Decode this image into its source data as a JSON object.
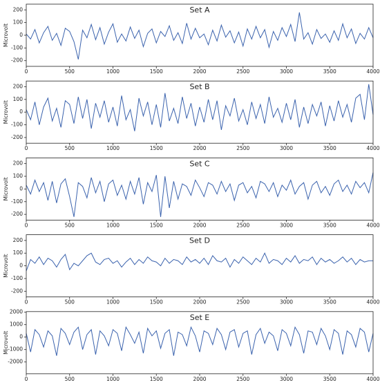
{
  "chart_data": [
    {
      "type": "line",
      "title": "Set A",
      "y_label": "Microvolt",
      "color": "#3a62ad",
      "x": [
        0,
        50,
        100,
        150,
        200,
        250,
        300,
        350,
        400,
        450,
        500,
        550,
        600,
        650,
        700,
        750,
        800,
        850,
        900,
        950,
        1000,
        1050,
        1100,
        1150,
        1200,
        1250,
        1300,
        1350,
        1400,
        1450,
        1500,
        1550,
        1600,
        1650,
        1700,
        1750,
        1800,
        1850,
        1900,
        1950,
        2000,
        2050,
        2100,
        2150,
        2200,
        2250,
        2300,
        2350,
        2400,
        2450,
        2500,
        2550,
        2600,
        2650,
        2700,
        2750,
        2800,
        2850,
        2900,
        2950,
        3000,
        3050,
        3100,
        3150,
        3200,
        3250,
        3300,
        3350,
        3400,
        3450,
        3500,
        3550,
        3600,
        3650,
        3700,
        3750,
        3800,
        3850,
        3900,
        3950,
        4000
      ],
      "values": [
        10,
        -30,
        45,
        -60,
        20,
        70,
        -40,
        15,
        -80,
        55,
        30,
        -50,
        -190,
        40,
        -20,
        85,
        -35,
        60,
        -70,
        25,
        90,
        -55,
        10,
        -45,
        65,
        -25,
        40,
        -90,
        15,
        50,
        -60,
        30,
        -10,
        75,
        -40,
        20,
        -65,
        95,
        -30,
        55,
        -20,
        10,
        -75,
        40,
        -45,
        80,
        -15,
        35,
        -60,
        25,
        -85,
        50,
        -30,
        70,
        -20,
        45,
        -95,
        30,
        -40,
        60,
        -10,
        85,
        -50,
        180,
        -30,
        20,
        -70,
        45,
        -25,
        10,
        -55,
        35,
        -40,
        90,
        -20,
        50,
        -65,
        15,
        -30,
        60,
        -20
      ],
      "xlim": [
        0,
        4000
      ],
      "xticks": [
        0,
        500,
        1000,
        1500,
        2000,
        2500,
        3000,
        3500,
        4000
      ],
      "ylim": [
        -245,
        245
      ],
      "yticks": [
        -200,
        -100,
        0,
        100,
        200
      ]
    },
    {
      "type": "line",
      "title": "Set B",
      "y_label": "Microvolt",
      "color": "#3a62ad",
      "x": [
        0,
        50,
        100,
        150,
        200,
        250,
        300,
        350,
        400,
        450,
        500,
        550,
        600,
        650,
        700,
        750,
        800,
        850,
        900,
        950,
        1000,
        1050,
        1100,
        1150,
        1200,
        1250,
        1300,
        1350,
        1400,
        1450,
        1500,
        1550,
        1600,
        1650,
        1700,
        1750,
        1800,
        1850,
        1900,
        1950,
        2000,
        2050,
        2100,
        2150,
        2200,
        2250,
        2300,
        2350,
        2400,
        2450,
        2500,
        2550,
        2600,
        2650,
        2700,
        2750,
        2800,
        2850,
        2900,
        2950,
        3000,
        3050,
        3100,
        3150,
        3200,
        3250,
        3300,
        3350,
        3400,
        3450,
        3500,
        3550,
        3600,
        3650,
        3700,
        3750,
        3800,
        3850,
        3900,
        3950,
        4000
      ],
      "values": [
        20,
        -60,
        80,
        -100,
        40,
        110,
        -70,
        30,
        -120,
        90,
        60,
        -90,
        120,
        -50,
        100,
        -130,
        70,
        -40,
        90,
        -80,
        40,
        -110,
        130,
        -60,
        20,
        -150,
        110,
        -30,
        80,
        -100,
        60,
        -120,
        150,
        -70,
        30,
        -90,
        120,
        -50,
        70,
        -110,
        40,
        -80,
        100,
        -60,
        90,
        -140,
        50,
        -30,
        110,
        -70,
        20,
        -100,
        80,
        -50,
        60,
        -90,
        120,
        -40,
        30,
        -80,
        70,
        -60,
        100,
        -120,
        40,
        -90,
        60,
        -30,
        80,
        -110,
        50,
        -70,
        90,
        -40,
        60,
        -80,
        110,
        140,
        -60,
        220,
        -20
      ],
      "xlim": [
        0,
        4000
      ],
      "xticks": [
        0,
        500,
        1000,
        1500,
        2000,
        2500,
        3000,
        3500,
        4000
      ],
      "ylim": [
        -245,
        245
      ],
      "yticks": [
        -200,
        -100,
        0,
        100,
        200
      ]
    },
    {
      "type": "line",
      "title": "Set C",
      "y_label": "Microvolt",
      "color": "#3a62ad",
      "x": [
        0,
        50,
        100,
        150,
        200,
        250,
        300,
        350,
        400,
        450,
        500,
        550,
        600,
        650,
        700,
        750,
        800,
        850,
        900,
        950,
        1000,
        1050,
        1100,
        1150,
        1200,
        1250,
        1300,
        1350,
        1400,
        1450,
        1500,
        1550,
        1600,
        1650,
        1700,
        1750,
        1800,
        1850,
        1900,
        1950,
        2000,
        2050,
        2100,
        2150,
        2200,
        2250,
        2300,
        2350,
        2400,
        2450,
        2500,
        2550,
        2600,
        2650,
        2700,
        2750,
        2800,
        2850,
        2900,
        2950,
        3000,
        3050,
        3100,
        3150,
        3200,
        3250,
        3300,
        3350,
        3400,
        3450,
        3500,
        3550,
        3600,
        3650,
        3700,
        3750,
        3800,
        3850,
        3900,
        3950,
        4000
      ],
      "values": [
        30,
        -40,
        70,
        -20,
        50,
        -90,
        60,
        -110,
        40,
        80,
        -60,
        -220,
        50,
        20,
        -70,
        90,
        -30,
        60,
        -100,
        40,
        70,
        -50,
        30,
        -80,
        60,
        -40,
        90,
        -120,
        50,
        -20,
        110,
        -220,
        100,
        -150,
        60,
        -80,
        40,
        20,
        -50,
        70,
        10,
        -60,
        50,
        30,
        -40,
        60,
        -20,
        40,
        -90,
        30,
        50,
        -30,
        20,
        -70,
        60,
        40,
        -20,
        50,
        -60,
        30,
        -10,
        70,
        -40,
        20,
        50,
        -80,
        30,
        60,
        -30,
        20,
        -50,
        40,
        70,
        -20,
        30,
        -40,
        60,
        10,
        50,
        -30,
        130
      ],
      "xlim": [
        0,
        4000
      ],
      "xticks": [
        0,
        500,
        1000,
        1500,
        2000,
        2500,
        3000,
        3500,
        4000
      ],
      "ylim": [
        -245,
        245
      ],
      "yticks": [
        -200,
        -100,
        0,
        100,
        200
      ]
    },
    {
      "type": "line",
      "title": "Set D",
      "y_label": "Microvolt",
      "color": "#3a62ad",
      "x": [
        0,
        50,
        100,
        150,
        200,
        250,
        300,
        350,
        400,
        450,
        500,
        550,
        600,
        650,
        700,
        750,
        800,
        850,
        900,
        950,
        1000,
        1050,
        1100,
        1150,
        1200,
        1250,
        1300,
        1350,
        1400,
        1450,
        1500,
        1550,
        1600,
        1650,
        1700,
        1750,
        1800,
        1850,
        1900,
        1950,
        2000,
        2050,
        2100,
        2150,
        2200,
        2250,
        2300,
        2350,
        2400,
        2450,
        2500,
        2550,
        2600,
        2650,
        2700,
        2750,
        2800,
        2850,
        2900,
        2950,
        3000,
        3050,
        3100,
        3150,
        3200,
        3250,
        3300,
        3350,
        3400,
        3450,
        3500,
        3550,
        3600,
        3650,
        3700,
        3750,
        3800,
        3850,
        3900,
        3950,
        4000
      ],
      "values": [
        -40,
        50,
        20,
        70,
        10,
        60,
        40,
        -10,
        50,
        90,
        -30,
        20,
        0,
        40,
        80,
        100,
        30,
        10,
        50,
        60,
        20,
        40,
        -10,
        30,
        60,
        10,
        50,
        20,
        70,
        40,
        30,
        0,
        60,
        20,
        50,
        40,
        10,
        70,
        30,
        50,
        20,
        60,
        10,
        80,
        40,
        30,
        60,
        -10,
        50,
        20,
        70,
        40,
        10,
        60,
        30,
        100,
        20,
        50,
        40,
        10,
        60,
        30,
        80,
        20,
        50,
        40,
        70,
        10,
        60,
        30,
        50,
        20,
        40,
        70,
        30,
        60,
        10,
        50,
        30,
        40,
        40
      ],
      "xlim": [
        0,
        4000
      ],
      "xticks": [
        0,
        500,
        1000,
        1500,
        2000,
        2500,
        3000,
        3500,
        4000
      ],
      "ylim": [
        -245,
        245
      ],
      "yticks": [
        -200,
        -100,
        0,
        100,
        200
      ]
    },
    {
      "type": "line",
      "title": "Set E",
      "y_label": "Microvolt",
      "color": "#3a62ad",
      "x": [
        0,
        50,
        100,
        150,
        200,
        250,
        300,
        350,
        400,
        450,
        500,
        550,
        600,
        650,
        700,
        750,
        800,
        850,
        900,
        950,
        1000,
        1050,
        1100,
        1150,
        1200,
        1250,
        1300,
        1350,
        1400,
        1450,
        1500,
        1550,
        1600,
        1650,
        1700,
        1750,
        1800,
        1850,
        1900,
        1950,
        2000,
        2050,
        2100,
        2150,
        2200,
        2250,
        2300,
        2350,
        2400,
        2450,
        2500,
        2550,
        2600,
        2650,
        2700,
        2750,
        2800,
        2850,
        2900,
        2950,
        3000,
        3050,
        3100,
        3150,
        3200,
        3250,
        3300,
        3350,
        3400,
        3450,
        3500,
        3550,
        3600,
        3650,
        3700,
        3750,
        3800,
        3850,
        3900,
        3950,
        4000
      ],
      "values": [
        300,
        -1200,
        600,
        200,
        -800,
        500,
        100,
        -1500,
        700,
        300,
        -600,
        400,
        800,
        -1000,
        200,
        600,
        -1400,
        500,
        100,
        -700,
        600,
        300,
        -1100,
        800,
        200,
        -500,
        400,
        -1300,
        700,
        100,
        500,
        -900,
        300,
        600,
        -1500,
        400,
        200,
        -700,
        800,
        100,
        -1200,
        500,
        300,
        -600,
        700,
        200,
        -1000,
        400,
        600,
        -800,
        300,
        500,
        -1400,
        200,
        700,
        -500,
        400,
        100,
        -1100,
        600,
        300,
        -700,
        800,
        200,
        -1300,
        500,
        400,
        -600,
        700,
        100,
        -1000,
        600,
        300,
        -1400,
        500,
        200,
        -800,
        700,
        400,
        -1200,
        300
      ],
      "xlim": [
        0,
        4000
      ],
      "xticks": [
        0,
        500,
        1000,
        1500,
        2000,
        2500,
        3000,
        3500,
        4000
      ],
      "ylim": [
        -2950,
        2050
      ],
      "yticks": [
        -2000,
        -1000,
        0,
        1000,
        2000
      ]
    }
  ]
}
